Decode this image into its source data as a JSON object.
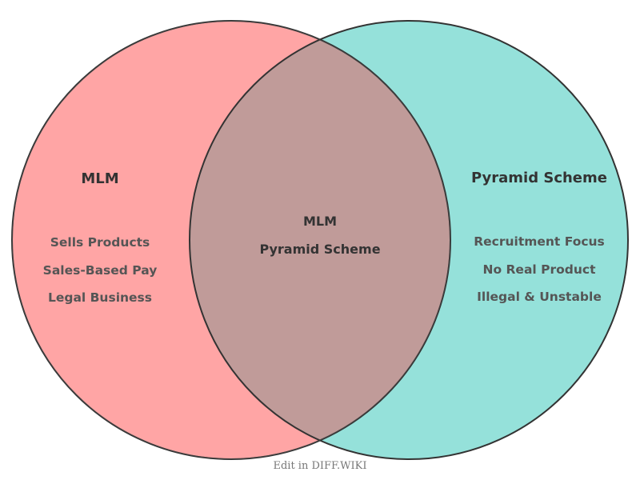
{
  "diagram": {
    "type": "venn",
    "left": {
      "title": "MLM",
      "items": [
        "Sells Products",
        "Sales-Based Pay",
        "Legal Business"
      ],
      "color": "#FFA5A5"
    },
    "right": {
      "title": "Pyramid Scheme",
      "items": [
        "Recruitment Focus",
        "No Real Product",
        "Illegal & Unstable"
      ],
      "color": "#95E1DA"
    },
    "overlap": {
      "items": [
        "MLM",
        "Pyramid Scheme"
      ],
      "color": "#C09B99"
    }
  },
  "footer": {
    "text": "Edit in DIFF.WIKI"
  }
}
